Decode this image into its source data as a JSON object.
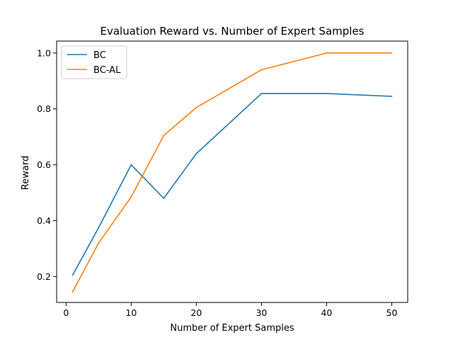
{
  "chart_data": {
    "type": "line",
    "title": "Evaluation Reward vs. Number of Expert Samples",
    "xlabel": "Number of Expert Samples",
    "ylabel": "Reward",
    "x": [
      1,
      5,
      10,
      15,
      20,
      30,
      40,
      50
    ],
    "series": [
      {
        "name": "BC",
        "color": "#1f77b4",
        "values": [
          0.205,
          0.375,
          0.6,
          0.48,
          0.64,
          0.855,
          0.855,
          0.845
        ]
      },
      {
        "name": "BC-AL",
        "color": "#ff7f0e",
        "values": [
          0.145,
          0.32,
          0.485,
          0.705,
          0.805,
          0.94,
          1.0,
          1.0
        ]
      }
    ],
    "xlim": [
      -1.45,
      52.45
    ],
    "ylim": [
      0.1073,
      1.0427
    ],
    "xticks": [
      "0",
      "10",
      "20",
      "30",
      "40",
      "50"
    ],
    "yticks": [
      "0.2",
      "0.4",
      "0.6",
      "0.8",
      "1.0"
    ],
    "grid": false,
    "legend_position": "top-left"
  }
}
